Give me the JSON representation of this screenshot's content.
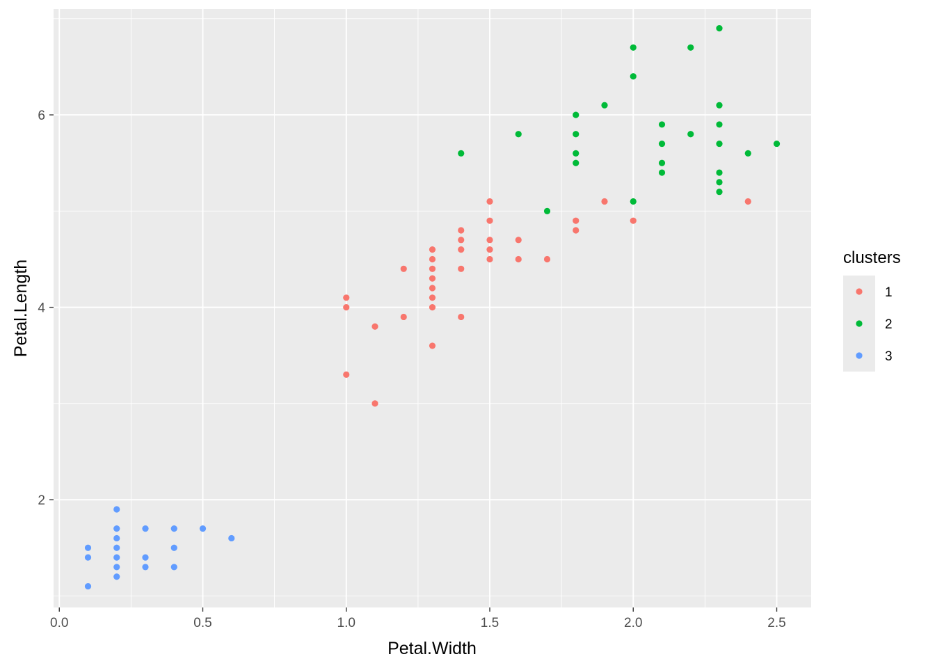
{
  "chart_data": {
    "type": "scatter",
    "xlabel": "Petal.Width",
    "ylabel": "Petal.Length",
    "xlim": [
      -0.02,
      2.62
    ],
    "ylim": [
      0.88,
      7.1
    ],
    "x_ticks": [
      0.0,
      0.5,
      1.0,
      1.5,
      2.0,
      2.5
    ],
    "x_tick_labels": [
      "0.0",
      "0.5",
      "1.0",
      "1.5",
      "2.0",
      "2.5"
    ],
    "y_ticks": [
      2,
      4,
      6
    ],
    "y_tick_labels": [
      "2",
      "4",
      "6"
    ],
    "grid": true,
    "background": "#ebebeb",
    "legend": {
      "title": "clusters",
      "position": "right",
      "entries": [
        {
          "label": "1",
          "color": "#f8766d"
        },
        {
          "label": "2",
          "color": "#00ba38"
        },
        {
          "label": "3",
          "color": "#619cff"
        }
      ]
    },
    "series": [
      {
        "name": "1",
        "color": "#f8766d",
        "points": [
          [
            1.0,
            4.1
          ],
          [
            1.0,
            4.0
          ],
          [
            1.0,
            3.3
          ],
          [
            1.1,
            3.8
          ],
          [
            1.1,
            3.0
          ],
          [
            1.2,
            4.4
          ],
          [
            1.2,
            3.9
          ],
          [
            1.3,
            4.6
          ],
          [
            1.3,
            4.5
          ],
          [
            1.3,
            4.4
          ],
          [
            1.3,
            4.3
          ],
          [
            1.3,
            4.2
          ],
          [
            1.3,
            4.1
          ],
          [
            1.3,
            4.0
          ],
          [
            1.3,
            3.6
          ],
          [
            1.4,
            4.8
          ],
          [
            1.4,
            4.7
          ],
          [
            1.4,
            4.6
          ],
          [
            1.4,
            4.4
          ],
          [
            1.4,
            3.9
          ],
          [
            1.5,
            5.1
          ],
          [
            1.5,
            4.9
          ],
          [
            1.5,
            4.7
          ],
          [
            1.5,
            4.6
          ],
          [
            1.5,
            4.5
          ],
          [
            1.6,
            4.7
          ],
          [
            1.6,
            4.5
          ],
          [
            1.7,
            4.5
          ],
          [
            1.8,
            4.9
          ],
          [
            1.8,
            4.8
          ],
          [
            1.9,
            5.1
          ],
          [
            2.0,
            4.9
          ],
          [
            2.4,
            5.1
          ]
        ]
      },
      {
        "name": "2",
        "color": "#00ba38",
        "points": [
          [
            1.4,
            5.6
          ],
          [
            1.6,
            5.8
          ],
          [
            1.7,
            5.0
          ],
          [
            1.8,
            6.0
          ],
          [
            1.8,
            5.8
          ],
          [
            1.8,
            5.6
          ],
          [
            1.8,
            5.5
          ],
          [
            1.9,
            6.1
          ],
          [
            2.0,
            6.7
          ],
          [
            2.0,
            6.4
          ],
          [
            2.0,
            5.1
          ],
          [
            2.1,
            5.9
          ],
          [
            2.1,
            5.7
          ],
          [
            2.1,
            5.5
          ],
          [
            2.1,
            5.4
          ],
          [
            2.2,
            6.7
          ],
          [
            2.2,
            5.8
          ],
          [
            2.3,
            6.9
          ],
          [
            2.3,
            6.1
          ],
          [
            2.3,
            5.9
          ],
          [
            2.3,
            5.7
          ],
          [
            2.3,
            5.4
          ],
          [
            2.3,
            5.3
          ],
          [
            2.3,
            5.2
          ],
          [
            2.4,
            5.6
          ],
          [
            2.5,
            5.7
          ]
        ]
      },
      {
        "name": "3",
        "color": "#619cff",
        "points": [
          [
            0.1,
            1.5
          ],
          [
            0.1,
            1.4
          ],
          [
            0.1,
            1.1
          ],
          [
            0.2,
            1.9
          ],
          [
            0.2,
            1.7
          ],
          [
            0.2,
            1.6
          ],
          [
            0.2,
            1.5
          ],
          [
            0.2,
            1.4
          ],
          [
            0.2,
            1.3
          ],
          [
            0.2,
            1.2
          ],
          [
            0.3,
            1.7
          ],
          [
            0.3,
            1.4
          ],
          [
            0.3,
            1.3
          ],
          [
            0.4,
            1.7
          ],
          [
            0.4,
            1.5
          ],
          [
            0.4,
            1.3
          ],
          [
            0.5,
            1.7
          ],
          [
            0.6,
            1.6
          ]
        ]
      }
    ]
  }
}
